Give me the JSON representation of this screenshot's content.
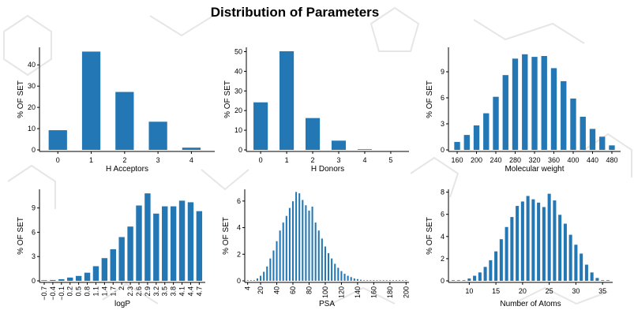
{
  "title": "Distribution of Parameters",
  "colors": {
    "bar": "#2377B4",
    "axis": "#000000",
    "background_pattern": "#E6E6E6"
  },
  "chart_data": [
    {
      "id": "h-acceptors",
      "type": "bar",
      "xlabel": "H Acceptors",
      "ylabel": "% OF SET",
      "categories": [
        "0",
        "1",
        "2",
        "3",
        "4"
      ],
      "values": [
        10,
        47,
        28,
        14,
        1.8
      ],
      "yticks": [
        0,
        10,
        20,
        30,
        40
      ],
      "ylim": [
        0,
        49
      ]
    },
    {
      "id": "h-donors",
      "type": "bar",
      "xlabel": "H Donors",
      "ylabel": "% OF SET",
      "categories": [
        "0",
        "1",
        "2",
        "3",
        "4",
        "5"
      ],
      "values": [
        25,
        51,
        17,
        5.5,
        0.6,
        0
      ],
      "yticks": [
        0,
        10,
        20,
        30,
        40,
        50
      ],
      "ylim": [
        0,
        53
      ]
    },
    {
      "id": "molecular-weight",
      "type": "bar",
      "xlabel": "Molecular weight",
      "ylabel": "% OF SET",
      "x": [
        160,
        180,
        200,
        220,
        240,
        260,
        280,
        300,
        320,
        340,
        360,
        380,
        400,
        420,
        440,
        460,
        480
      ],
      "values": [
        1.1,
        1.9,
        3.0,
        4.4,
        6.3,
        8.8,
        10.7,
        11.2,
        10.9,
        11.0,
        9.6,
        8.1,
        6.1,
        4.0,
        2.6,
        1.7,
        0.7
      ],
      "xticks": [
        160,
        200,
        240,
        280,
        320,
        360,
        400,
        440,
        480
      ],
      "yticks": [
        0,
        3,
        6,
        9
      ],
      "ylim": [
        0,
        12
      ]
    },
    {
      "id": "logp",
      "type": "bar",
      "xlabel": "logP",
      "ylabel": "% OF SET",
      "categories": [
        "-0.7",
        "-0.4",
        "-0.1",
        "0.2",
        "0.5",
        "0.8",
        "1.1",
        "1.4",
        "1.7",
        "2",
        "2.3",
        "2.6",
        "2.9",
        "3.2",
        "3.5",
        "3.8",
        "4.1",
        "4.4",
        "4.7"
      ],
      "tick_labels": [
        "−0.7",
        "−0.4",
        "−0.1",
        "0.2",
        "0.5",
        "0.8",
        "1.1",
        "1.4",
        "1.7",
        "2",
        "2.3",
        "2.6",
        "2.9",
        "3.2",
        "3.5",
        "3.8",
        "4.1",
        "4.4",
        "4.7"
      ],
      "values": [
        0.2,
        0.3,
        0.4,
        0.6,
        0.8,
        1.2,
        2.0,
        3.0,
        4.1,
        5.6,
        6.9,
        9.5,
        11.0,
        8.5,
        9.4,
        9.4,
        10.1,
        9.9,
        8.8
      ],
      "yticks": [
        0,
        3,
        6,
        9
      ],
      "ylim": [
        0,
        11.5
      ]
    },
    {
      "id": "psa",
      "type": "bar",
      "xlabel": "PSA",
      "ylabel": "% OF SET",
      "x": [
        4,
        8,
        12,
        16,
        20,
        24,
        28,
        32,
        36,
        40,
        44,
        48,
        52,
        56,
        60,
        64,
        68,
        72,
        76,
        80,
        84,
        88,
        92,
        96,
        100,
        104,
        108,
        112,
        116,
        120,
        124,
        128,
        132,
        136,
        140,
        144,
        148,
        152,
        156,
        160,
        164,
        168,
        172,
        176,
        180,
        184,
        188,
        192,
        196,
        200
      ],
      "values": [
        0.03,
        0.08,
        0.15,
        0.3,
        0.5,
        0.8,
        1.2,
        1.8,
        2.4,
        3.1,
        3.9,
        4.5,
        5.0,
        5.6,
        6.1,
        6.8,
        6.7,
        6.2,
        5.8,
        5.4,
        5.7,
        4.5,
        3.9,
        3.3,
        2.7,
        2.2,
        1.8,
        1.4,
        1.1,
        0.85,
        0.65,
        0.5,
        0.4,
        0.3,
        0.25,
        0.2,
        0.15,
        0.12,
        0.1,
        0.08,
        0.06,
        0.05,
        0.04,
        0.03,
        0.03,
        0.02,
        0.02,
        0.01,
        0.01,
        0.01
      ],
      "xticks": [
        4,
        20,
        40,
        60,
        80,
        100,
        120,
        140,
        160,
        180,
        200
      ],
      "yticks": [
        0,
        2,
        4,
        6
      ],
      "ylim": [
        0,
        7
      ]
    },
    {
      "id": "number-of-atoms",
      "type": "bar",
      "xlabel": "Number of Atoms",
      "ylabel": "% OF SET",
      "x": [
        7,
        8,
        9,
        10,
        11,
        12,
        13,
        14,
        15,
        16,
        17,
        18,
        19,
        20,
        21,
        22,
        23,
        24,
        25,
        26,
        27,
        28,
        29,
        30,
        31,
        32,
        33,
        34,
        35,
        36
      ],
      "values": [
        0.05,
        0.12,
        0.2,
        0.35,
        0.6,
        0.9,
        1.4,
        2.0,
        2.8,
        3.9,
        5.0,
        5.9,
        6.9,
        7.3,
        7.8,
        7.5,
        7.2,
        6.8,
        8.0,
        7.4,
        6.1,
        5.3,
        4.3,
        3.4,
        2.6,
        1.6,
        0.9,
        0.4,
        0.2,
        0.06
      ],
      "xticks": [
        10,
        15,
        20,
        25,
        30,
        35
      ],
      "yticks": [
        0,
        2,
        4,
        6,
        8
      ],
      "ylim": [
        0,
        8.4
      ]
    }
  ]
}
